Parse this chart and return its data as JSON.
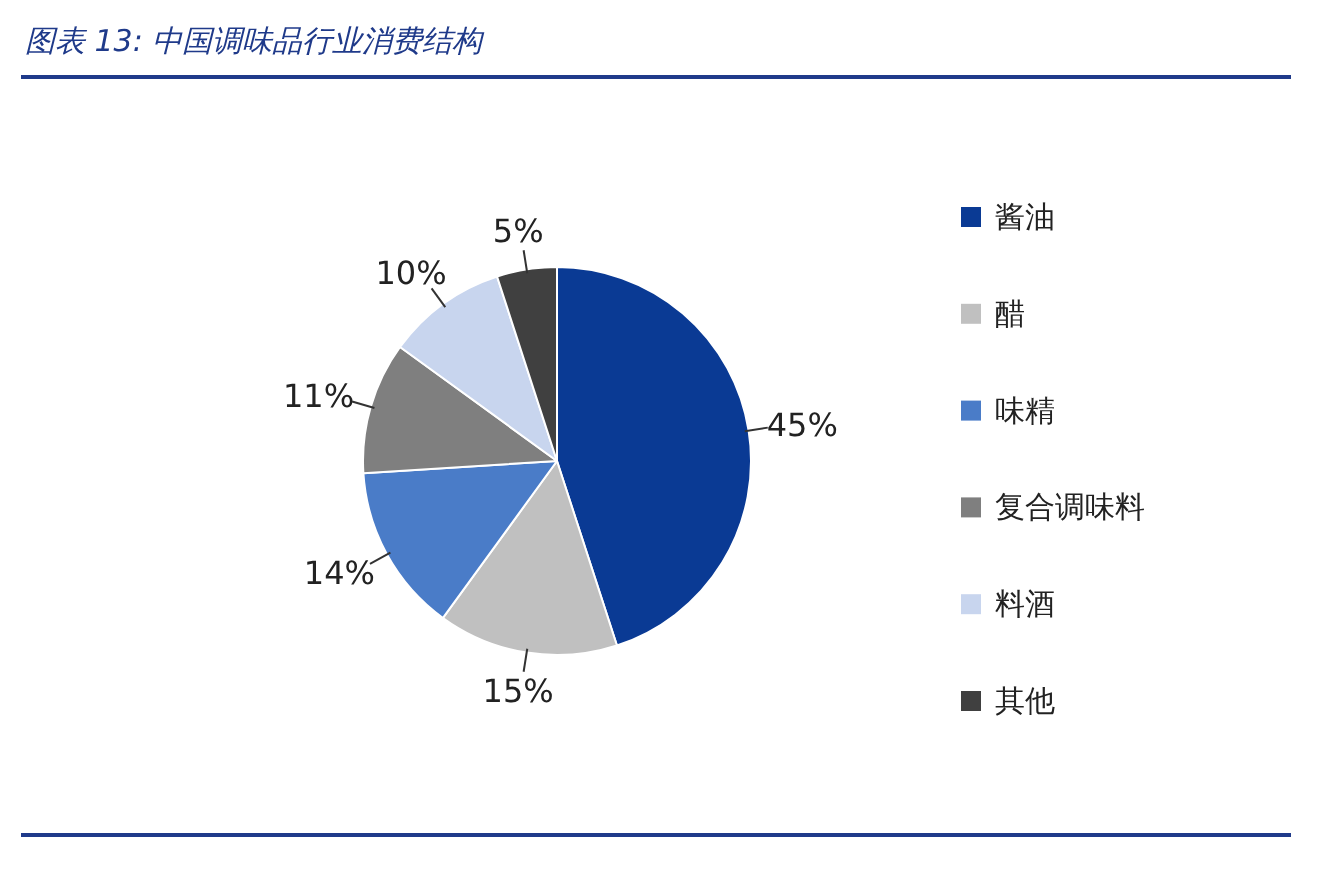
{
  "chart_data": {
    "type": "pie",
    "title": "图表 13:  中国调味品行业消费结构",
    "categories": [
      "酱油",
      "醋",
      "味精",
      "复合调味料",
      "料酒",
      "其他"
    ],
    "values": [
      45,
      15,
      14,
      11,
      10,
      5
    ],
    "colors": [
      "#0a3a94",
      "#c0c0c0",
      "#4a7cc8",
      "#7f7f7f",
      "#c8d5ee",
      "#404040"
    ],
    "value_labels": [
      "45%",
      "15%",
      "14%",
      "11%",
      "10%",
      "5%"
    ],
    "legend": "right"
  }
}
